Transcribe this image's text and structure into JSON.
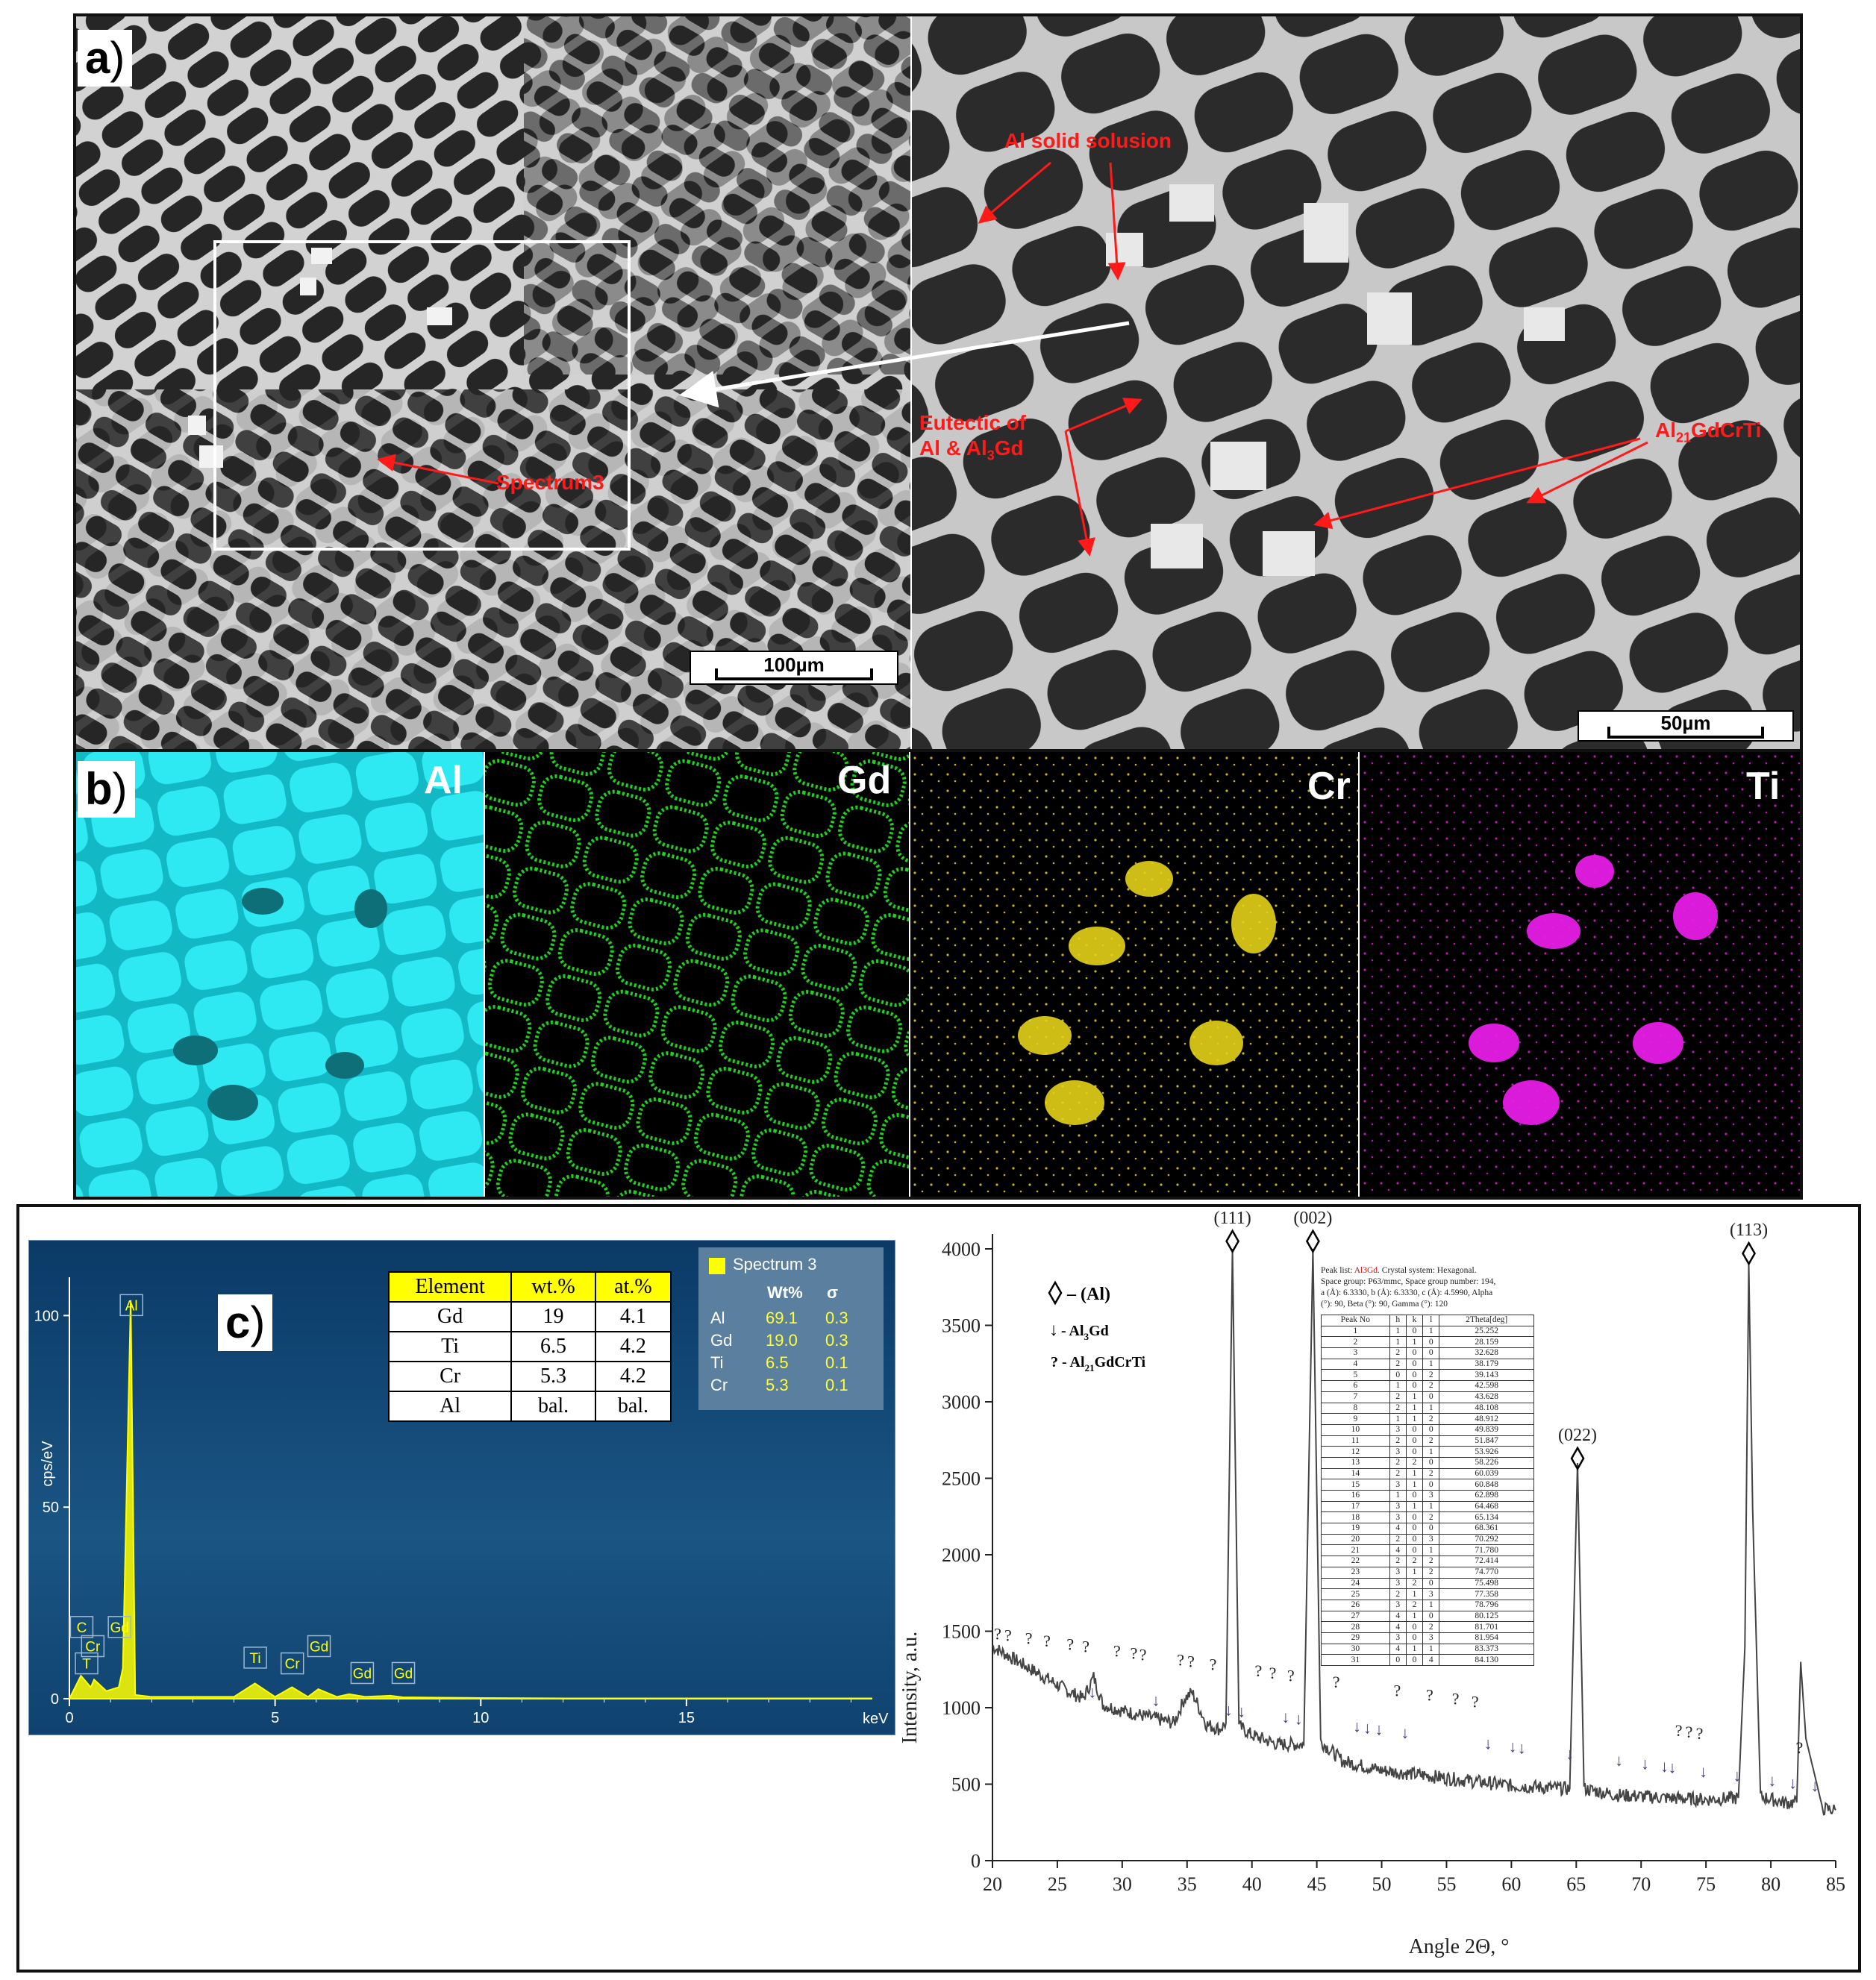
{
  "panel_a": {
    "label": "a",
    "annotations": {
      "al_solid": "Al solid solusion",
      "eutectic_line1": "Eutectic of",
      "eutectic_line2_pre": "Al & Al",
      "eutectic_line2_sub": "3",
      "eutectic_line2_post": "Gd",
      "phase_pre": "Al",
      "phase_sub": "21",
      "phase_post": "GdCrTi",
      "spectrum": "Spectrum3"
    },
    "scalebar_left": "100µm",
    "scalebar_right": "50µm"
  },
  "panel_b": {
    "label": "b",
    "maps": [
      {
        "element": "Al",
        "color": "#19dbe6"
      },
      {
        "element": "Gd",
        "color": "#1fd21f"
      },
      {
        "element": "Cr",
        "color": "#e6d21a"
      },
      {
        "element": "Ti",
        "color": "#e61ee6"
      }
    ]
  },
  "panel_c": {
    "label": "c",
    "composition_table": {
      "headers": [
        "Element",
        "wt.%",
        "at.%"
      ],
      "rows": [
        [
          "Gd",
          "19",
          "4.1"
        ],
        [
          "Ti",
          "6.5",
          "4.2"
        ],
        [
          "Cr",
          "5.3",
          "4.2"
        ],
        [
          "Al",
          "bal.",
          "bal."
        ]
      ]
    },
    "spectrum_box": {
      "title": "Spectrum 3",
      "col_wt": "Wt%",
      "col_sigma": "σ",
      "rows": [
        [
          "Al",
          "69.1",
          "0.3"
        ],
        [
          "Gd",
          "19.0",
          "0.3"
        ],
        [
          "Ti",
          "6.5",
          "0.1"
        ],
        [
          "Cr",
          "5.3",
          "0.1"
        ]
      ]
    },
    "eds_chart": {
      "ylabel": "cps/eV",
      "xunit": "keV",
      "yticks": [
        "0",
        "50",
        "100"
      ],
      "xticks": [
        "0",
        "5",
        "10",
        "15"
      ],
      "peak_tags": [
        "Al",
        "C",
        "Cr",
        "T",
        "Gd",
        "Ti",
        "Cr",
        "Gd",
        "Gd",
        "Gd"
      ]
    }
  },
  "chart_data": [
    {
      "type": "line",
      "title": "",
      "xlabel": "",
      "ylabel": "cps/eV",
      "xunit": "keV",
      "xlim": [
        0,
        19.5
      ],
      "ylim": [
        0,
        110
      ],
      "series": [
        {
          "x": [
            0.0,
            0.28,
            0.52,
            0.6,
            0.9,
            1.2,
            1.3,
            1.49,
            1.6,
            2.0,
            3.0,
            4.0,
            4.51,
            5.0,
            5.41,
            5.8,
            6.05,
            6.5,
            6.8,
            7.2,
            7.8,
            8.1,
            9.0,
            10.0,
            12.0,
            14.0,
            16.0,
            18.0,
            19.5
          ],
          "values": [
            0,
            6,
            3,
            5,
            2,
            3,
            8,
            104,
            1,
            0.5,
            0.5,
            0.5,
            4,
            0.5,
            3,
            0.5,
            2.5,
            0.5,
            1.2,
            0.5,
            0.8,
            0.4,
            0.3,
            0.2,
            0.1,
            0.1,
            0.1,
            0.1,
            0.1
          ],
          "color": "#ffff00"
        }
      ]
    },
    {
      "type": "line",
      "title": "",
      "xlabel": "Angle 2Θ, °",
      "ylabel": "Intensity, a.u.",
      "xlim": [
        20,
        85
      ],
      "ylim": [
        0,
        4000
      ],
      "yticks": [
        0,
        500,
        1000,
        1500,
        2000,
        2500,
        3000,
        3500,
        4000
      ],
      "xticks": [
        20,
        25,
        30,
        35,
        40,
        45,
        50,
        55,
        60,
        65,
        70,
        75,
        80,
        85
      ],
      "legend": {
        "al": "– (Al)",
        "al3gd_pre": "- Al",
        "al3gd_sub": "3",
        "al3gd_post": "Gd",
        "phase_pre": "? - Al",
        "phase_sub": "21",
        "phase_post": "GdCrTi"
      },
      "peak_labels": [
        {
          "text": "(111)",
          "x": 38.5,
          "y": 4050
        },
        {
          "text": "(002)",
          "x": 44.7,
          "y": 4050
        },
        {
          "text": "(022)",
          "x": 65.1,
          "y": 2630
        },
        {
          "text": "(113)",
          "x": 78.3,
          "y": 3970
        }
      ],
      "series": [
        {
          "name": "",
          "x": [
            20,
            21,
            22,
            23,
            24,
            25,
            26,
            27,
            27.8,
            28.5,
            30,
            32,
            34,
            34.8,
            35.4,
            36.5,
            37.5,
            38.0,
            38.5,
            39.0,
            40,
            42,
            44.0,
            44.7,
            45.3,
            47,
            50,
            55,
            60,
            64.5,
            65.1,
            65.6,
            68,
            72,
            75,
            77.5,
            78.0,
            78.3,
            78.6,
            79.2,
            81,
            82.0,
            82.3,
            82.7,
            84,
            85
          ],
          "values": [
            1400,
            1350,
            1300,
            1250,
            1200,
            1150,
            1100,
            1060,
            1200,
            1020,
            980,
            940,
            900,
            1060,
            1100,
            890,
            860,
            900,
            4000,
            880,
            820,
            760,
            760,
            4000,
            780,
            650,
            590,
            540,
            490,
            470,
            2600,
            470,
            430,
            410,
            400,
            410,
            1400,
            3900,
            2300,
            420,
            380,
            380,
            1300,
            800,
            340,
            330
          ],
          "color": "#444444"
        }
      ],
      "annotations": [
        "(111)",
        "(002)",
        "(022)",
        "(113)"
      ]
    }
  ],
  "peak_list": {
    "title_pre": "Peak list: ",
    "title_phase": "Al3Gd",
    "title_post": ". Crystal system: Hexagonal.",
    "line2": "Space group: P63/mmc, Space group number: 194,",
    "line3": "a (Å): 6.3330, b (Å): 6.3330, c (Å): 4.5990, Alpha",
    "line4": "(°): 90, Beta (°): 90, Gamma (°): 120",
    "headers": [
      "Peak No",
      "h",
      "k",
      "l",
      "2Theta[deg]"
    ],
    "rows": [
      [
        "1",
        "1",
        "0",
        "1",
        "25.252"
      ],
      [
        "2",
        "1",
        "1",
        "0",
        "28.159"
      ],
      [
        "3",
        "2",
        "0",
        "0",
        "32.628"
      ],
      [
        "4",
        "2",
        "0",
        "1",
        "38.179"
      ],
      [
        "5",
        "0",
        "0",
        "2",
        "39.143"
      ],
      [
        "6",
        "1",
        "0",
        "2",
        "42.598"
      ],
      [
        "7",
        "2",
        "1",
        "0",
        "43.628"
      ],
      [
        "8",
        "2",
        "1",
        "1",
        "48.108"
      ],
      [
        "9",
        "1",
        "1",
        "2",
        "48.912"
      ],
      [
        "10",
        "3",
        "0",
        "0",
        "49.839"
      ],
      [
        "11",
        "2",
        "0",
        "2",
        "51.847"
      ],
      [
        "12",
        "3",
        "0",
        "1",
        "53.926"
      ],
      [
        "13",
        "2",
        "2",
        "0",
        "58.226"
      ],
      [
        "14",
        "2",
        "1",
        "2",
        "60.039"
      ],
      [
        "15",
        "3",
        "1",
        "0",
        "60.848"
      ],
      [
        "16",
        "1",
        "0",
        "3",
        "62.898"
      ],
      [
        "17",
        "3",
        "1",
        "1",
        "64.468"
      ],
      [
        "18",
        "3",
        "0",
        "2",
        "65.134"
      ],
      [
        "19",
        "4",
        "0",
        "0",
        "68.361"
      ],
      [
        "20",
        "2",
        "0",
        "3",
        "70.292"
      ],
      [
        "21",
        "4",
        "0",
        "1",
        "71.780"
      ],
      [
        "22",
        "2",
        "2",
        "2",
        "72.414"
      ],
      [
        "23",
        "3",
        "1",
        "2",
        "74.770"
      ],
      [
        "24",
        "3",
        "2",
        "0",
        "75.498"
      ],
      [
        "25",
        "2",
        "1",
        "3",
        "77.358"
      ],
      [
        "26",
        "3",
        "2",
        "1",
        "78.796"
      ],
      [
        "27",
        "4",
        "1",
        "0",
        "80.125"
      ],
      [
        "28",
        "4",
        "0",
        "2",
        "81.701"
      ],
      [
        "29",
        "3",
        "0",
        "3",
        "81.954"
      ],
      [
        "30",
        "4",
        "1",
        "1",
        "83.373"
      ],
      [
        "31",
        "0",
        "0",
        "4",
        "84.130"
      ]
    ]
  }
}
